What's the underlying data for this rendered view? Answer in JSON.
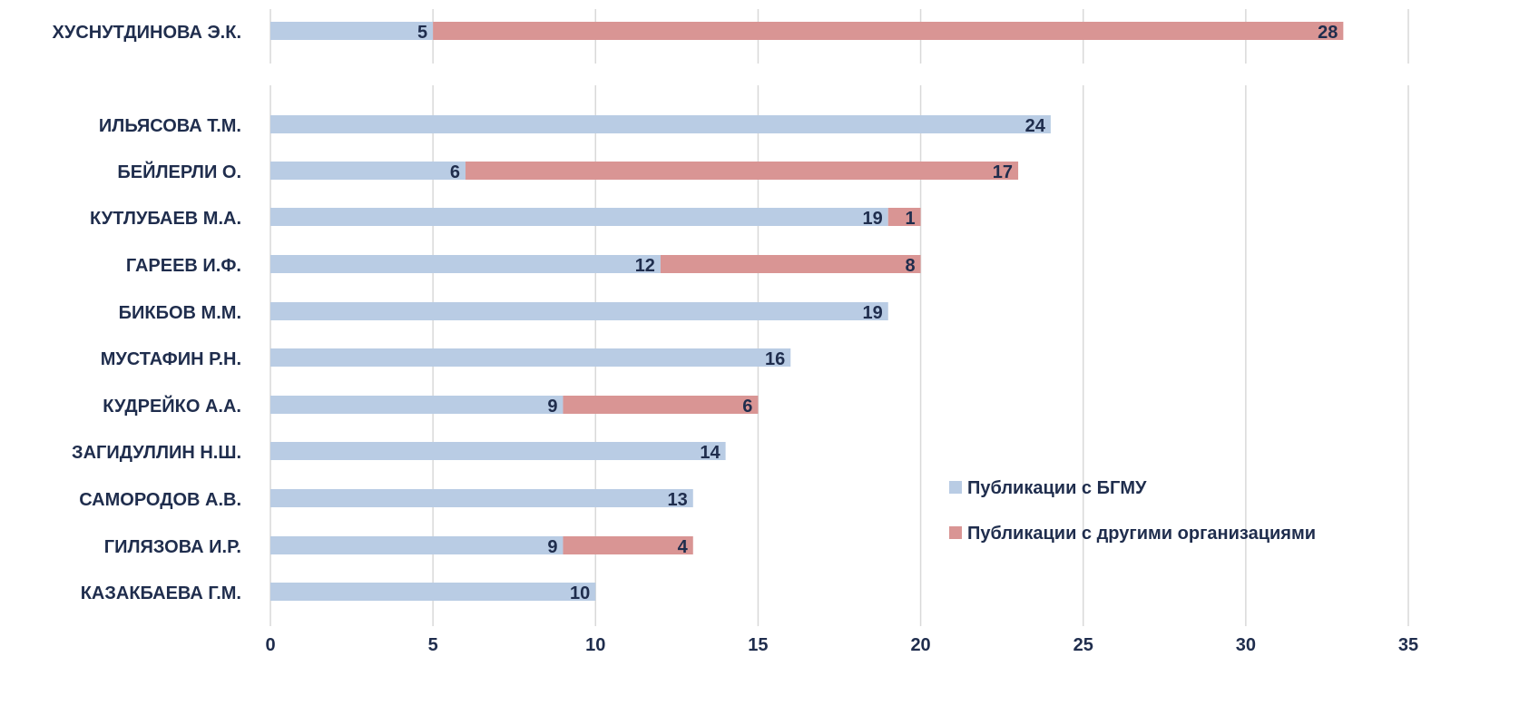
{
  "colors": {
    "bgmu": "#b9cce4",
    "other": "#d99594",
    "text": "#1f2d4d",
    "grid": "#d9d9d9"
  },
  "chart_data": {
    "type": "bar",
    "orientation": "horizontal",
    "stacked": true,
    "categories": [
      "ХУСНУТДИНОВА Э.К.",
      "ИЛЬЯСОВА Т.М.",
      "БЕЙЛЕРЛИ О.",
      "КУТЛУБАЕВ М.А.",
      "ГАРЕЕВ И.Ф.",
      "БИКБОВ М.М.",
      "МУСТАФИН Р.Н.",
      "КУДРЕЙКО А.А.",
      "ЗАГИДУЛЛИН Н.Ш.",
      "САМОРОДОВ А.В.",
      "ГИЛЯЗОВА И.Р.",
      "КАЗАКБАЕВА Г.М."
    ],
    "series": [
      {
        "name": "Публикации с БГМУ",
        "color": "#b9cce4",
        "values": [
          5,
          24,
          6,
          19,
          12,
          19,
          16,
          9,
          14,
          13,
          9,
          10
        ]
      },
      {
        "name": "Публикации с другими организациями",
        "color": "#d99594",
        "values": [
          28,
          null,
          17,
          1,
          8,
          null,
          null,
          6,
          null,
          null,
          4,
          null
        ]
      }
    ],
    "xlim": [
      0,
      35
    ],
    "xticks": [
      "0",
      "5",
      "10",
      "15",
      "20",
      "25",
      "30",
      "35"
    ],
    "grid": "vertical",
    "legend": "bottom-right"
  }
}
